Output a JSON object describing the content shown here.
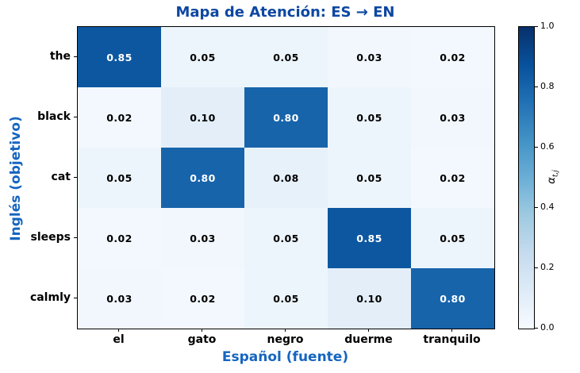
{
  "figure": {
    "background_color": "#ffffff",
    "title_color": "#0d47a1",
    "axis_label_color": "#1565c0",
    "tick_label_color": "#000000",
    "cell_text_dark": "#000000",
    "cell_text_light": "#ffffff"
  },
  "chart_data": {
    "type": "heatmap",
    "title": "Mapa de Atención: ES → EN",
    "xlabel": "Español (fuente)",
    "ylabel": "Inglés (objetivo)",
    "x_categories": [
      "el",
      "gato",
      "negro",
      "duerme",
      "tranquilo"
    ],
    "y_categories": [
      "the",
      "black",
      "cat",
      "sleeps",
      "calmly"
    ],
    "values": [
      [
        0.85,
        0.05,
        0.05,
        0.03,
        0.02
      ],
      [
        0.02,
        0.1,
        0.8,
        0.05,
        0.03
      ],
      [
        0.05,
        0.8,
        0.08,
        0.05,
        0.02
      ],
      [
        0.02,
        0.03,
        0.05,
        0.85,
        0.05
      ],
      [
        0.03,
        0.02,
        0.05,
        0.1,
        0.8
      ]
    ],
    "value_decimals": 2,
    "vmin": 0.0,
    "vmax": 1.0,
    "grid": false,
    "colormap": "Blues",
    "colormap_stops": [
      {
        "pos": 0.0,
        "color": "#f7fbff"
      },
      {
        "pos": 0.125,
        "color": "#deebf7"
      },
      {
        "pos": 0.25,
        "color": "#c6dbef"
      },
      {
        "pos": 0.375,
        "color": "#9ecae1"
      },
      {
        "pos": 0.5,
        "color": "#6baed6"
      },
      {
        "pos": 0.625,
        "color": "#4292c6"
      },
      {
        "pos": 0.75,
        "color": "#2171b5"
      },
      {
        "pos": 0.875,
        "color": "#08519c"
      },
      {
        "pos": 1.0,
        "color": "#08306b"
      }
    ],
    "text_color_threshold": 0.5,
    "colorbar": {
      "position": "right",
      "label_base": "α",
      "label_sub": "t,j",
      "tick_labels": [
        "0.0",
        "0.2",
        "0.4",
        "0.6",
        "0.8",
        "1.0"
      ],
      "tick_values": [
        0.0,
        0.2,
        0.4,
        0.6,
        0.8,
        1.0
      ]
    }
  }
}
